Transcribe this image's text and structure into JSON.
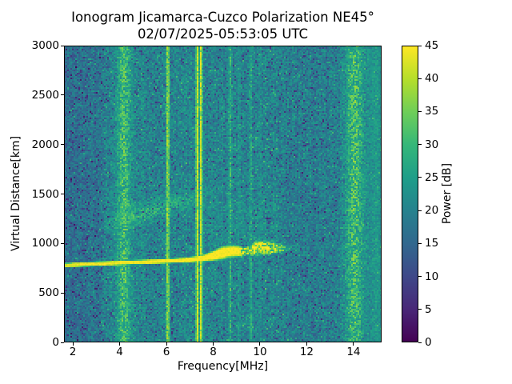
{
  "title": {
    "line1": "Ionogram Jicamarca-Cuzco Polarization NE45°",
    "line2": "02/07/2025-05:53:05 UTC"
  },
  "axes": {
    "x": {
      "label": "Frequency[MHz]",
      "ticks": [
        2,
        4,
        6,
        8,
        10,
        12,
        14
      ]
    },
    "y": {
      "label": "Virtual Distance[km]",
      "ticks": [
        0,
        500,
        1000,
        1500,
        2000,
        2500,
        3000
      ]
    }
  },
  "colorbar": {
    "label": "Power [dB]",
    "ticks": [
      0,
      5,
      10,
      15,
      20,
      25,
      30,
      35,
      40,
      45
    ],
    "colormap": "viridis",
    "colormap_stops": [
      "#440154",
      "#482878",
      "#3e4989",
      "#31688e",
      "#26828e",
      "#1f9e89",
      "#35b779",
      "#6ece58",
      "#b5de2b",
      "#fde725"
    ]
  },
  "colors": {
    "background": "#ffffff",
    "text": "#000000",
    "spine": "#000000"
  },
  "chart_data": {
    "type": "heatmap",
    "title": "Ionogram Jicamarca-Cuzco Polarization NE45°",
    "subtitle": "02/07/2025-05:53:05 UTC",
    "xlabel": "Frequency[MHz]",
    "ylabel": "Virtual Distance[km]",
    "clabel": "Power [dB]",
    "xlim": [
      1.62,
      15.2
    ],
    "ylim": [
      0,
      3000
    ],
    "clim": [
      0,
      45
    ],
    "grid": [
      199,
      186
    ],
    "noise": {
      "seed": 1337,
      "spread": 4.6,
      "col_gain": 1.1,
      "bg_mean": [
        [
          1.62,
          16.2
        ],
        [
          2.4,
          16.8
        ],
        [
          3.1,
          17.8
        ],
        [
          3.55,
          20.6
        ],
        [
          10.3,
          20.6
        ],
        [
          11.2,
          19.4
        ],
        [
          13.45,
          19.2
        ],
        [
          13.75,
          20.8
        ],
        [
          14.6,
          20.6
        ],
        [
          15.2,
          21.2
        ]
      ],
      "dark_prob": 0.1,
      "dark_amt": [
        5,
        12
      ],
      "bright_prob": 0.06,
      "bright_amt": [
        3,
        8
      ]
    },
    "rfi_lines": [
      {
        "f": 4.18,
        "sigma": 0.22,
        "power": 30,
        "var": 8,
        "kind": "band"
      },
      {
        "f": 6.05,
        "sigma": 0.045,
        "power": 40,
        "var": 5,
        "kind": "line"
      },
      {
        "f": 7.3,
        "sigma": 0.04,
        "power": 44,
        "var": 2,
        "kind": "line"
      },
      {
        "f": 7.47,
        "sigma": 0.04,
        "power": 44,
        "var": 2,
        "kind": "line"
      },
      {
        "f": 8.74,
        "sigma": 0.04,
        "power": 29,
        "var": 6,
        "kind": "line"
      },
      {
        "f": 9.12,
        "sigma": 0.035,
        "power": 24,
        "var": 5,
        "kind": "line"
      },
      {
        "f": 9.62,
        "sigma": 0.04,
        "power": 27,
        "var": 6,
        "kind": "line"
      },
      {
        "f": 10.02,
        "sigma": 0.035,
        "power": 23.5,
        "var": 5,
        "kind": "line"
      },
      {
        "f": 14.05,
        "sigma": 0.28,
        "power": 30,
        "var": 9,
        "kind": "band"
      },
      {
        "f": 14.93,
        "sigma": 0.22,
        "power": 23.5,
        "var": 4,
        "kind": "band"
      }
    ],
    "echo_trace": {
      "points": [
        [
          1.65,
          778
        ],
        [
          3.0,
          792
        ],
        [
          4.5,
          806
        ],
        [
          6.0,
          820
        ],
        [
          7.0,
          833
        ],
        [
          7.6,
          850
        ],
        [
          8.0,
          874
        ],
        [
          8.35,
          900
        ],
        [
          8.7,
          916
        ],
        [
          9.05,
          920
        ],
        [
          9.35,
          912
        ],
        [
          9.6,
          930
        ],
        [
          9.85,
          950
        ],
        [
          10.2,
          955
        ],
        [
          10.6,
          950
        ],
        [
          11.0,
          952
        ],
        [
          11.35,
          960
        ]
      ],
      "power": [
        [
          1.65,
          42
        ],
        [
          2.2,
          44
        ],
        [
          7.2,
          45
        ],
        [
          9.1,
          45
        ],
        [
          9.45,
          36
        ],
        [
          9.6,
          40
        ],
        [
          10.3,
          40
        ],
        [
          10.8,
          33
        ],
        [
          11.35,
          26
        ]
      ],
      "thickness": [
        [
          1.65,
          42
        ],
        [
          6.8,
          46
        ],
        [
          7.6,
          70
        ],
        [
          8.35,
          130
        ],
        [
          9.05,
          110
        ],
        [
          9.45,
          80
        ],
        [
          9.85,
          150
        ],
        [
          10.4,
          140
        ],
        [
          10.9,
          90
        ],
        [
          11.35,
          60
        ]
      ],
      "speckle_from": 9.2
    },
    "second_hop_trace": {
      "points": [
        [
          3.35,
          1190
        ],
        [
          4.2,
          1245
        ],
        [
          5.0,
          1305
        ],
        [
          6.0,
          1375
        ],
        [
          7.0,
          1440
        ],
        [
          8.3,
          1520
        ]
      ],
      "power": [
        [
          3.35,
          25
        ],
        [
          4.15,
          31
        ],
        [
          4.9,
          30
        ],
        [
          6.2,
          28
        ],
        [
          7.2,
          26
        ],
        [
          8.3,
          22
        ]
      ],
      "thickness": [
        [
          3.35,
          95
        ],
        [
          5.0,
          120
        ],
        [
          8.3,
          130
        ]
      ],
      "density": 0.6
    },
    "diffuse_clouds": [
      {
        "f": [
          7.4,
          10.9
        ],
        "d": [
          980,
          1420
        ],
        "power": 23,
        "var": 4,
        "density": 0.3
      },
      {
        "f": [
          3.8,
          4.7
        ],
        "d": [
          1140,
          1430
        ],
        "power": 26,
        "var": 5,
        "density": 0.45
      },
      {
        "f": [
          5.3,
          6.7
        ],
        "d": [
          1290,
          1500
        ],
        "power": 25,
        "var": 5,
        "density": 0.4
      }
    ]
  }
}
